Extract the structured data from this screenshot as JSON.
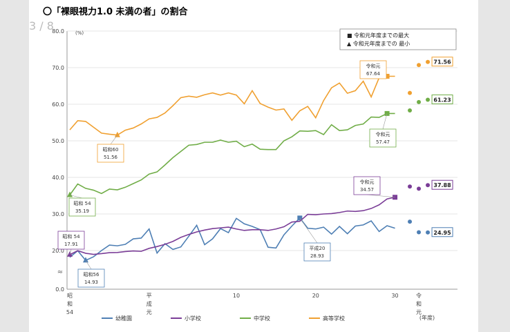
{
  "page": {
    "heading": "〇「裸眼視力1.0 未満の者」の割合",
    "page_indicator": "3 / 8"
  },
  "chart_data": {
    "type": "line",
    "y_unit": "(%)",
    "ylim": [
      0,
      80
    ],
    "y_ticks": [
      "0.0",
      "20.0",
      "30.0",
      "40.0",
      "50.0",
      "60.0",
      "70.0",
      "80.0"
    ],
    "y_break": "≈",
    "x_range": [
      0,
      44
    ],
    "x_tick_labels": [
      {
        "x": 0,
        "lines": [
          "昭",
          "和",
          "54"
        ]
      },
      {
        "x": 10,
        "lines": [
          "平",
          "成",
          "元"
        ]
      },
      {
        "x": 21,
        "lines": [
          "10"
        ]
      },
      {
        "x": 31,
        "lines": [
          "20"
        ]
      },
      {
        "x": 41,
        "lines": [
          "30"
        ]
      },
      {
        "x": 44,
        "lines": [
          "令",
          "和",
          "元"
        ]
      }
    ],
    "x_unit_label": "(年度)",
    "legend_box": [
      "■ 令和元年度までの最大",
      "▲ 令和元年度までの 最小"
    ],
    "series": [
      {
        "name": "幼稚園",
        "color": "#4e7fb4",
        "values": [
          16.5,
          19.9,
          14.9,
          16.8,
          20.0,
          21.5,
          21.3,
          21.7,
          23.2,
          23.4,
          25.9,
          18.7,
          21.9,
          20.3,
          21.0,
          23.9,
          26.9,
          21.6,
          23.2,
          26.0,
          24.9,
          28.8,
          27.3,
          26.6,
          25.7,
          20.9,
          20.7,
          24.3,
          26.7,
          28.9,
          26.1,
          25.9,
          26.4,
          24.5,
          26.6,
          24.6,
          26.7,
          27.0,
          28.1,
          25.2,
          26.8,
          26.1
        ],
        "extra_points": [
          27.9,
          25.0,
          24.95
        ],
        "min": {
          "x": 2,
          "label": [
            "昭和56",
            "14.93"
          ]
        },
        "max": {
          "x": 29,
          "label": [
            "平成20",
            "28.93"
          ]
        },
        "end_label": "24.95"
      },
      {
        "name": "小学校",
        "color": "#7a3d97",
        "values": [
          17.9,
          19.9,
          18.6,
          18.0,
          18.4,
          18.9,
          19.0,
          19.5,
          19.8,
          19.6,
          20.6,
          21.1,
          21.7,
          22.5,
          23.6,
          24.4,
          25.1,
          25.6,
          26.0,
          26.2,
          26.4,
          25.9,
          25.5,
          25.7,
          25.7,
          25.5,
          25.9,
          26.5,
          27.8,
          28.0,
          29.9,
          29.8,
          30.0,
          30.1,
          30.4,
          30.8,
          30.7,
          30.9,
          31.5,
          32.5,
          34.1,
          34.57
        ],
        "extra_points": [
          37.5,
          36.9,
          37.88
        ],
        "min": {
          "x": 0,
          "label": [
            "昭和 54",
            "17.91"
          ]
        },
        "max": {
          "x": 41,
          "label": [
            "令和元",
            "34.57"
          ]
        },
        "end_label": "37.88"
      },
      {
        "name": "中学校",
        "color": "#70ad47",
        "values": [
          35.19,
          38.2,
          37.0,
          36.5,
          35.6,
          36.8,
          36.6,
          37.3,
          38.3,
          39.3,
          40.9,
          41.5,
          43.4,
          45.4,
          47.1,
          48.8,
          49.0,
          49.6,
          49.6,
          50.2,
          49.6,
          49.9,
          48.4,
          49.1,
          47.7,
          47.6,
          47.6,
          50.0,
          51.1,
          52.7,
          52.6,
          52.8,
          51.7,
          54.4,
          52.8,
          53.0,
          54.2,
          54.6,
          56.5,
          56.4,
          57.47,
          57.47
        ],
        "extra_points": [
          58.3,
          60.6,
          61.23
        ],
        "min": {
          "x": 0,
          "label": [
            "昭和 54",
            "35.19"
          ]
        },
        "max": {
          "x": 40,
          "label": [
            "令和元",
            "57.47"
          ]
        },
        "end_label": "61.23"
      },
      {
        "name": "高等学校",
        "color": "#f0a030",
        "values": [
          53.0,
          55.5,
          55.3,
          53.7,
          52.1,
          51.8,
          51.56,
          52.9,
          53.5,
          54.6,
          56.0,
          56.4,
          57.6,
          59.6,
          61.8,
          62.2,
          61.9,
          62.6,
          63.1,
          62.5,
          63.1,
          62.5,
          60.1,
          63.7,
          60.2,
          59.2,
          58.4,
          58.7,
          55.6,
          58.2,
          59.4,
          56.3,
          61.0,
          64.5,
          65.8,
          63.0,
          63.7,
          66.3,
          62.0,
          67.23,
          67.64,
          67.64
        ],
        "extra_points": [
          63.1,
          70.7,
          71.56
        ],
        "min": {
          "x": 6,
          "label": [
            "昭和60",
            "51.56"
          ]
        },
        "max": {
          "x": 40,
          "label": [
            "令和元",
            "67.64"
          ]
        },
        "end_label": "71.56"
      }
    ]
  }
}
